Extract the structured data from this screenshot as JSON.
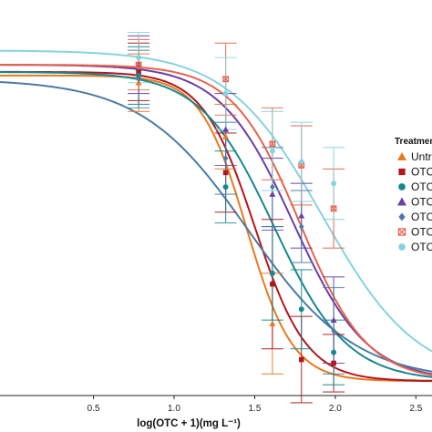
{
  "chart_data": {
    "type": "scatter",
    "title": "",
    "xlabel": "log(OTC + 1)(mg L⁻¹)",
    "ylabel": "",
    "xlim": [
      -0.08,
      2.6
    ],
    "ylim": [
      -0.04,
      1.06
    ],
    "x_ticks": [
      0.5,
      1.0,
      1.5,
      2.0,
      2.5
    ],
    "x_tick_labels": [
      "0.5",
      "1.0",
      "1.5",
      "2.0",
      "2.5"
    ],
    "grid": false,
    "legend": {
      "title": "Treatmen",
      "position": "right"
    },
    "series": [
      {
        "name": "Untre",
        "color": "#E8791F",
        "marker": "triangle",
        "x": [
          0.78,
          1.32,
          1.61
        ],
        "y": [
          0.83,
          0.68,
          0.16
        ],
        "err": [
          0.08,
          0.09,
          0.14
        ],
        "curve": {
          "top": 0.85,
          "bottom": 0.0,
          "x50": 1.45,
          "slope": 7.0
        }
      },
      {
        "name": "OTC",
        "color": "#B2161E",
        "marker": "square",
        "x": [
          0.78,
          1.32,
          1.61,
          1.79,
          1.99
        ],
        "y": [
          0.86,
          0.58,
          0.27,
          0.06,
          0.05
        ],
        "err": [
          0.08,
          0.11,
          0.18,
          0.12,
          0.08
        ],
        "curve": {
          "top": 0.86,
          "bottom": 0.0,
          "x50": 1.5,
          "slope": 6.2
        }
      },
      {
        "name": "OTC",
        "color": "#17888E",
        "marker": "circle",
        "x": [
          0.78,
          1.32,
          1.61,
          1.79,
          1.99
        ],
        "y": [
          0.85,
          0.54,
          0.3,
          0.2,
          0.08
        ],
        "err": [
          0.08,
          0.1,
          0.13,
          0.11,
          0.09
        ],
        "curve": {
          "top": 0.86,
          "bottom": 0.0,
          "x50": 1.62,
          "slope": 4.4
        }
      },
      {
        "name": "OTC",
        "color": "#6A3FA6",
        "marker": "triangle",
        "x": [
          0.78,
          1.32,
          1.61,
          1.79,
          1.99
        ],
        "y": [
          0.88,
          0.7,
          0.52,
          0.46,
          0.17
        ],
        "err": [
          0.08,
          0.1,
          0.1,
          0.09,
          0.12
        ],
        "curve": {
          "top": 0.88,
          "bottom": 0.0,
          "x50": 1.74,
          "slope": 4.4
        }
      },
      {
        "name": "OTC",
        "color": "#4A7BA6",
        "marker": "diamond",
        "x": [
          0.78,
          1.32,
          1.61,
          1.79,
          1.99
        ],
        "y": [
          0.84,
          0.62,
          0.54,
          0.43,
          0.14
        ],
        "err": [
          0.08,
          0.1,
          0.11,
          0.1,
          0.12
        ],
        "curve": {
          "top": 0.84,
          "bottom": 0.0,
          "x50": 1.46,
          "slope": 3.0
        }
      },
      {
        "name": "OTC",
        "color": "#E8624A",
        "marker": "square-x",
        "x": [
          0.78,
          1.32,
          1.61,
          1.79,
          1.99
        ],
        "y": [
          0.88,
          0.84,
          0.66,
          0.6,
          0.48
        ],
        "err": [
          0.07,
          0.1,
          0.1,
          0.11,
          0.11
        ],
        "curve": {
          "top": 0.88,
          "bottom": 0.0,
          "x50": 1.78,
          "slope": 4.8
        }
      },
      {
        "name": "OTC",
        "color": "#86D3E0",
        "marker": "circle",
        "x": [
          0.78,
          1.32,
          1.61,
          1.79,
          1.99
        ],
        "y": [
          0.9,
          0.8,
          0.64,
          0.61,
          0.55
        ],
        "err": [
          0.07,
          0.1,
          0.11,
          0.11,
          0.1
        ],
        "curve": {
          "top": 0.92,
          "bottom": 0.0,
          "x50": 1.92,
          "slope": 3.4
        }
      }
    ]
  }
}
